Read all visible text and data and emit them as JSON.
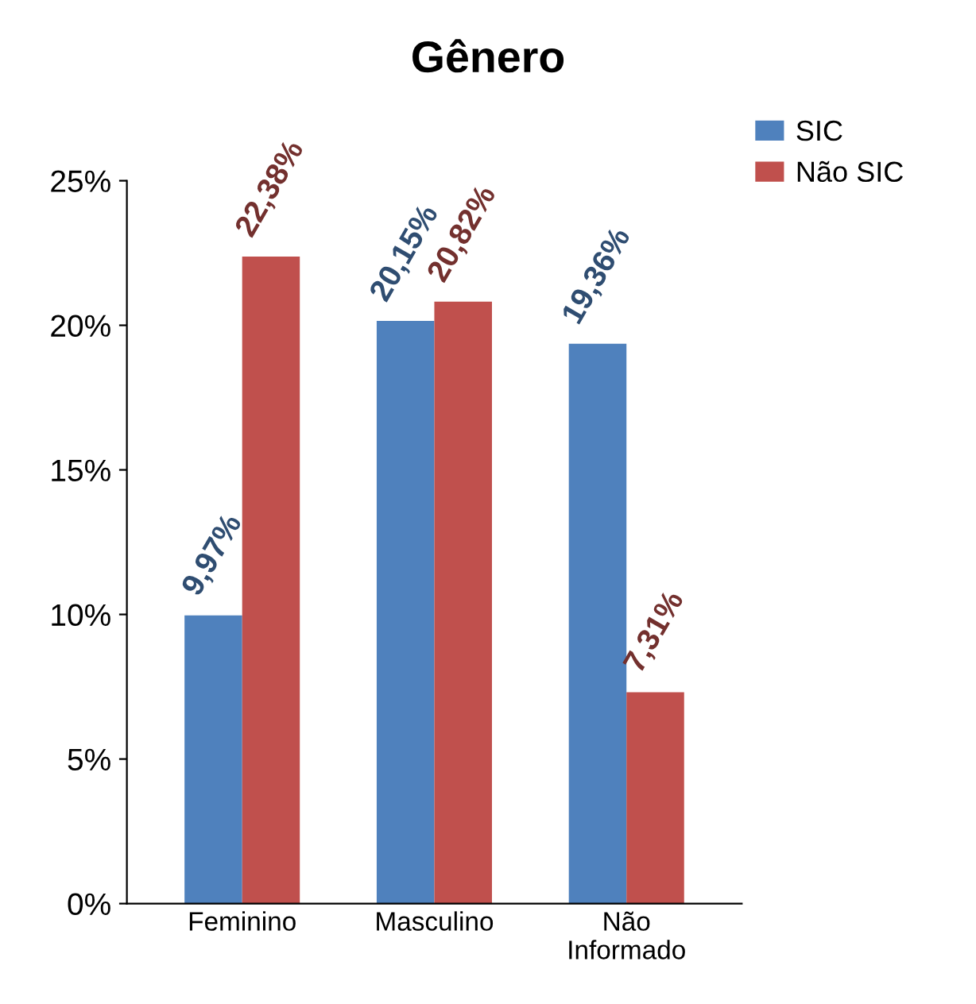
{
  "chart_data": {
    "type": "bar",
    "title": "Gênero",
    "categories": [
      "Feminino",
      "Masculino",
      "Não\nInformado"
    ],
    "series": [
      {
        "name": "SIC",
        "color": "#4f81bd",
        "values": [
          9.97,
          20.15,
          19.36
        ],
        "value_labels": [
          "9,97%",
          "20,15%",
          "19,36%"
        ]
      },
      {
        "name": "Não SIC",
        "color": "#c0504d",
        "values": [
          22.38,
          20.82,
          7.31
        ],
        "value_labels": [
          "22,38%",
          "20,82%",
          "7,31%"
        ]
      }
    ],
    "ylim": [
      0,
      25
    ],
    "yticks": [
      {
        "value": 0,
        "label": "0%"
      },
      {
        "value": 5,
        "label": "5%"
      },
      {
        "value": 10,
        "label": "10%"
      },
      {
        "value": 15,
        "label": "15%"
      },
      {
        "value": 20,
        "label": "20%"
      },
      {
        "value": 25,
        "label": "25%"
      }
    ],
    "grid": false,
    "legend": "top right"
  }
}
